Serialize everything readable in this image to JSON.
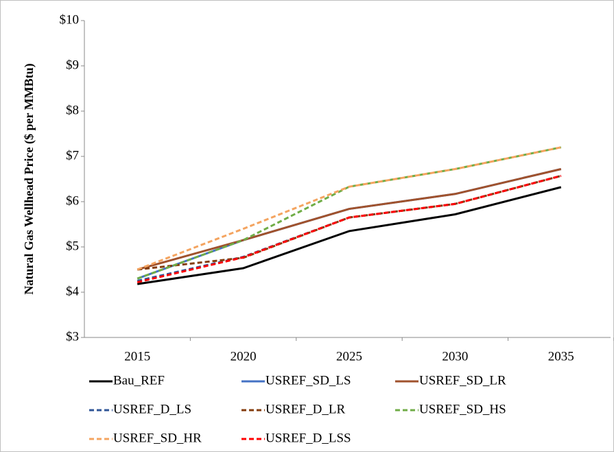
{
  "chart_data": {
    "type": "line",
    "y_label": "Natural Gas Wellhead Price ($ per MMBtu)",
    "categories": [
      "2015",
      "2020",
      "2025",
      "2030",
      "2035"
    ],
    "ylim": [
      3,
      10
    ],
    "yticks": [
      {
        "value": 3,
        "label": "$3"
      },
      {
        "value": 4,
        "label": "$4"
      },
      {
        "value": 5,
        "label": "$5"
      },
      {
        "value": 6,
        "label": "$6"
      },
      {
        "value": 7,
        "label": "$7"
      },
      {
        "value": 8,
        "label": "$8"
      },
      {
        "value": 9,
        "label": "$9"
      },
      {
        "value": 10,
        "label": "$10"
      }
    ],
    "grid": false,
    "series": [
      {
        "name": "Bau_REF",
        "color": "#000000",
        "dashed": false,
        "values": [
          4.18,
          4.53,
          5.35,
          5.72,
          6.32
        ]
      },
      {
        "name": "USREF_SD_LS",
        "color": "#4472c4",
        "dashed": false,
        "values": [
          4.3,
          5.15,
          5.84,
          6.17,
          6.72
        ]
      },
      {
        "name": "USREF_SD_LR",
        "color": "#a0522d",
        "dashed": false,
        "values": [
          4.5,
          5.15,
          5.84,
          6.17,
          6.72
        ]
      },
      {
        "name": "USREF_D_LS",
        "color": "#2f5597",
        "dashed": true,
        "values": [
          4.25,
          4.78,
          5.65,
          5.95,
          6.57
        ]
      },
      {
        "name": "USREF_D_LR",
        "color": "#843c0c",
        "dashed": true,
        "values": [
          4.5,
          4.76,
          5.65,
          5.95,
          6.57
        ]
      },
      {
        "name": "USREF_SD_HS",
        "color": "#70ad47",
        "dashed": true,
        "values": [
          4.3,
          5.15,
          6.33,
          6.72,
          7.2
        ]
      },
      {
        "name": "USREF_SD_HR",
        "color": "#f4a460",
        "dashed": true,
        "values": [
          4.5,
          5.4,
          6.33,
          6.72,
          7.2
        ]
      },
      {
        "name": "USREF_D_LSS",
        "color": "#ff0000",
        "dashed": true,
        "values": [
          4.22,
          4.77,
          5.65,
          5.95,
          6.57
        ]
      }
    ]
  }
}
